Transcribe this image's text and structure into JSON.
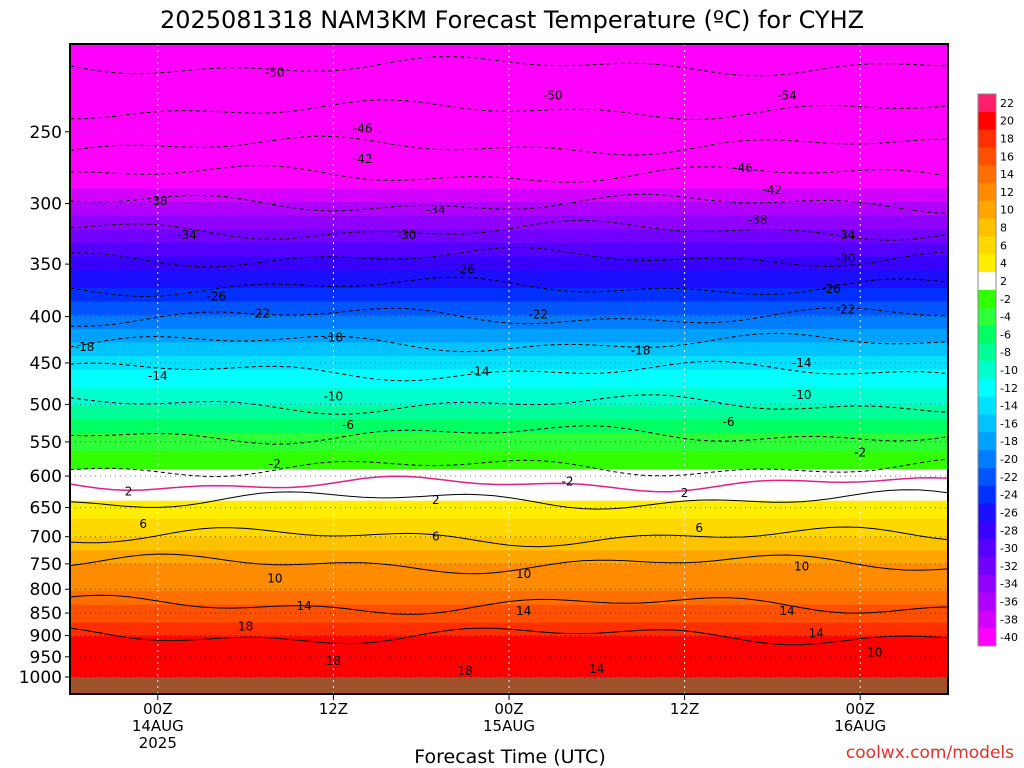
{
  "title": "2025081318 NAM3KM Forecast Temperature (ºC) for CYHZ",
  "credit": "coolwx.com/models",
  "chart_data": {
    "type": "heatmap",
    "title": "2025081318 NAM3KM Forecast Temperature (ºC) for CYHZ",
    "xlabel": "Forecast Time (UTC)",
    "ylabel": "",
    "y_scale": "log-pressure (hPa, inverted)",
    "ylim": [
      1000,
      200
    ],
    "y_ticks": [
      250,
      300,
      350,
      400,
      450,
      500,
      550,
      600,
      650,
      700,
      750,
      800,
      850,
      900,
      950,
      1000
    ],
    "x_ticks": [
      {
        "line1": "00Z",
        "line2": "14AUG",
        "line3": "2025"
      },
      {
        "line1": "12Z",
        "line2": "",
        "line3": ""
      },
      {
        "line1": "00Z",
        "line2": "15AUG",
        "line3": ""
      },
      {
        "line1": "12Z",
        "line2": "",
        "line3": ""
      },
      {
        "line1": "00Z",
        "line2": "16AUG",
        "line3": ""
      }
    ],
    "x_tick_hours": [
      6,
      18,
      30,
      42,
      54
    ],
    "x_range_hours": [
      0,
      60
    ],
    "grid": true,
    "temperature_profile": [
      {
        "p": 200,
        "t": -56
      },
      {
        "p": 250,
        "t": -48
      },
      {
        "p": 300,
        "t": -38
      },
      {
        "p": 350,
        "t": -29
      },
      {
        "p": 400,
        "t": -22
      },
      {
        "p": 450,
        "t": -15
      },
      {
        "p": 500,
        "t": -10
      },
      {
        "p": 550,
        "t": -5
      },
      {
        "p": 600,
        "t": -1
      },
      {
        "p": 650,
        "t": 3
      },
      {
        "p": 700,
        "t": 6
      },
      {
        "p": 750,
        "t": 10
      },
      {
        "p": 800,
        "t": 12
      },
      {
        "p": 850,
        "t": 15
      },
      {
        "p": 900,
        "t": 18
      },
      {
        "p": 950,
        "t": 19
      },
      {
        "p": 1000,
        "t": 20
      }
    ],
    "contour_labels": [
      {
        "text": "-50",
        "hour": 14,
        "p": 215
      },
      {
        "text": "-50",
        "hour": 33,
        "p": 228
      },
      {
        "text": "-54",
        "hour": 49,
        "p": 228
      },
      {
        "text": "-46",
        "hour": 20,
        "p": 248
      },
      {
        "text": "-46",
        "hour": 46,
        "p": 274
      },
      {
        "text": "-42",
        "hour": 20,
        "p": 268
      },
      {
        "text": "-42",
        "hour": 48,
        "p": 290
      },
      {
        "text": "-38",
        "hour": 6,
        "p": 298
      },
      {
        "text": "-38",
        "hour": 47,
        "p": 313
      },
      {
        "text": "-34",
        "hour": 8,
        "p": 325
      },
      {
        "text": "-34",
        "hour": 25,
        "p": 305
      },
      {
        "text": "-34",
        "hour": 53,
        "p": 325
      },
      {
        "text": "-30",
        "hour": 23,
        "p": 325
      },
      {
        "text": "-30",
        "hour": 53,
        "p": 345
      },
      {
        "text": "-26",
        "hour": 10,
        "p": 380
      },
      {
        "text": "-26",
        "hour": 27,
        "p": 355
      },
      {
        "text": "-26",
        "hour": 52,
        "p": 373
      },
      {
        "text": "-22",
        "hour": 13,
        "p": 397
      },
      {
        "text": "-22",
        "hour": 32,
        "p": 398
      },
      {
        "text": "-22",
        "hour": 53,
        "p": 393
      },
      {
        "text": "-18",
        "hour": 1,
        "p": 432
      },
      {
        "text": "-18",
        "hour": 18,
        "p": 422
      },
      {
        "text": "-18",
        "hour": 39,
        "p": 436
      },
      {
        "text": "-14",
        "hour": 6,
        "p": 465
      },
      {
        "text": "-14",
        "hour": 28,
        "p": 460
      },
      {
        "text": "-14",
        "hour": 50,
        "p": 450
      },
      {
        "text": "-10",
        "hour": 18,
        "p": 490
      },
      {
        "text": "-10",
        "hour": 50,
        "p": 488
      },
      {
        "text": "-6",
        "hour": 19,
        "p": 527
      },
      {
        "text": "-6",
        "hour": 45,
        "p": 523
      },
      {
        "text": "-2",
        "hour": 14,
        "p": 582
      },
      {
        "text": "-2",
        "hour": 34,
        "p": 608
      },
      {
        "text": "-2",
        "hour": 54,
        "p": 565
      },
      {
        "text": "2",
        "hour": 4,
        "p": 624
      },
      {
        "text": "2",
        "hour": 25,
        "p": 638
      },
      {
        "text": "2",
        "hour": 42,
        "p": 626
      },
      {
        "text": "6",
        "hour": 5,
        "p": 678
      },
      {
        "text": "6",
        "hour": 25,
        "p": 700
      },
      {
        "text": "6",
        "hour": 43,
        "p": 685
      },
      {
        "text": "10",
        "hour": 14,
        "p": 778
      },
      {
        "text": "10",
        "hour": 31,
        "p": 770
      },
      {
        "text": "10",
        "hour": 50,
        "p": 755
      },
      {
        "text": "14",
        "hour": 16,
        "p": 835
      },
      {
        "text": "14",
        "hour": 31,
        "p": 845
      },
      {
        "text": "14",
        "hour": 49,
        "p": 845
      },
      {
        "text": "14",
        "hour": 51,
        "p": 895
      },
      {
        "text": "14",
        "hour": 36,
        "p": 980
      },
      {
        "text": "18",
        "hour": 12,
        "p": 880
      },
      {
        "text": "18",
        "hour": 18,
        "p": 960
      },
      {
        "text": "18",
        "hour": 27,
        "p": 985
      },
      {
        "text": "10",
        "hour": 55,
        "p": 940
      }
    ],
    "colorbar": {
      "labels": [
        "22",
        "20",
        "18",
        "16",
        "14",
        "12",
        "10",
        "8",
        "6",
        "4",
        "2",
        "-2",
        "-4",
        "-6",
        "-8",
        "-10",
        "-12",
        "-14",
        "-16",
        "-18",
        "-20",
        "-22",
        "-24",
        "-26",
        "-28",
        "-30",
        "-32",
        "-34",
        "-36",
        "-38",
        "-40"
      ],
      "colors": [
        "#ff1f6d",
        "#ff0000",
        "#ff2f00",
        "#ff5000",
        "#ff6e00",
        "#ff8b00",
        "#ffa500",
        "#ffc200",
        "#ffd800",
        "#ffee00",
        "#ffffff",
        "#32ff00",
        "#2dff38",
        "#00ff62",
        "#00ff98",
        "#00ffcc",
        "#00ffff",
        "#00e0ff",
        "#00c3ff",
        "#00a0ff",
        "#007cff",
        "#0055ff",
        "#0030ff",
        "#1a10ff",
        "#3800ff",
        "#5500ff",
        "#7200ff",
        "#9000ff",
        "#b000ff",
        "#d200ff",
        "#ff00ff"
      ]
    }
  }
}
